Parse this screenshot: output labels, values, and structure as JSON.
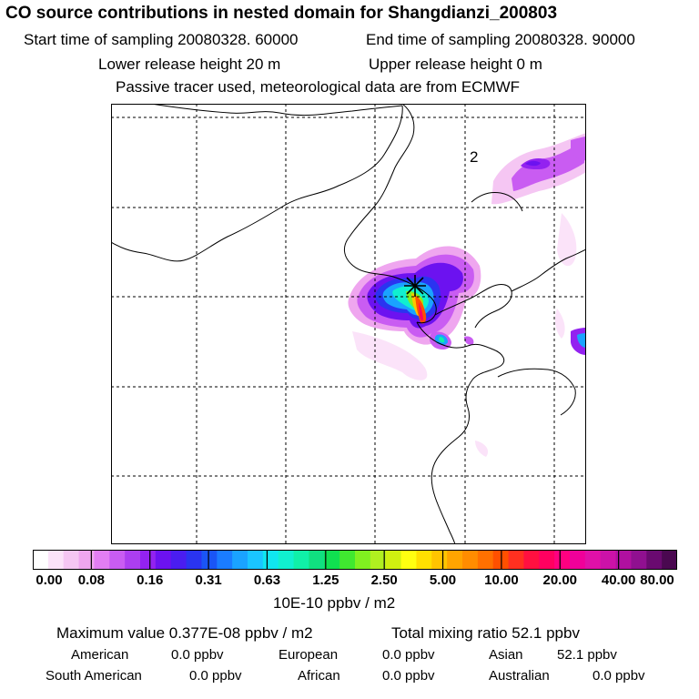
{
  "header": {
    "title": "CO  source contributions in nested domain for Shangdianzi_200803",
    "start_time": "Start time of sampling 20080328. 60000",
    "end_time": "End time of sampling 20080328. 90000",
    "lower_height": "Lower release height   20 m",
    "upper_height": "Upper release height    0 m",
    "tracer_note": "Passive tracer used, meteorological data are from ECMWF"
  },
  "chart_data": {
    "type": "heatmap",
    "title": "CO  source contributions in nested domain for Shangdianzi_200803",
    "grid": true,
    "map_label": "2",
    "receptor_marker": "asterisk",
    "colorbar": {
      "unit": "10E-10 ppbv / m2",
      "tick_labels": [
        "0.00",
        "0.08",
        "0.16",
        "0.31",
        "0.63",
        "1.25",
        "2.50",
        "5.00",
        "10.00",
        "20.00",
        "40.00",
        "80.00"
      ],
      "colors": [
        "#ffffff",
        "#fbe3f9",
        "#f5c6f3",
        "#efa6ef",
        "#e27ef3",
        "#c95cf2",
        "#ac3ef0",
        "#9322f0",
        "#6c12f0",
        "#4a1df0",
        "#2a34f0",
        "#1a55f5",
        "#1a7cff",
        "#1aa3ff",
        "#1ac5ff",
        "#10e6f0",
        "#10f0d0",
        "#10f0a8",
        "#10e080",
        "#10e050",
        "#40e830",
        "#80f020",
        "#b0f020",
        "#d0f010",
        "#ffff10",
        "#ffe000",
        "#ffc400",
        "#ffa400",
        "#ff8c00",
        "#ff7000",
        "#ff5000",
        "#ff3020",
        "#ff1040",
        "#ff0060",
        "#ff0080",
        "#f0009a",
        "#e010a8",
        "#cc12a8",
        "#b010a0",
        "#901090",
        "#6a0a70",
        "#4a0850"
      ]
    }
  },
  "footer": {
    "max_value": "Maximum value  0.377E-08 ppbv / m2",
    "total_mixing": "Total mixing ratio      52.1 ppbv",
    "american": "American",
    "american_val": "0.0 ppbv",
    "european": "European",
    "european_val": "0.0 ppbv",
    "asian": "Asian",
    "asian_val": "52.1 ppbv",
    "south_american": "South American",
    "south_american_val": "0.0 ppbv",
    "african": "African",
    "african_val": "0.0 ppbv",
    "australian": "Australian",
    "australian_val": "0.0 ppbv"
  }
}
